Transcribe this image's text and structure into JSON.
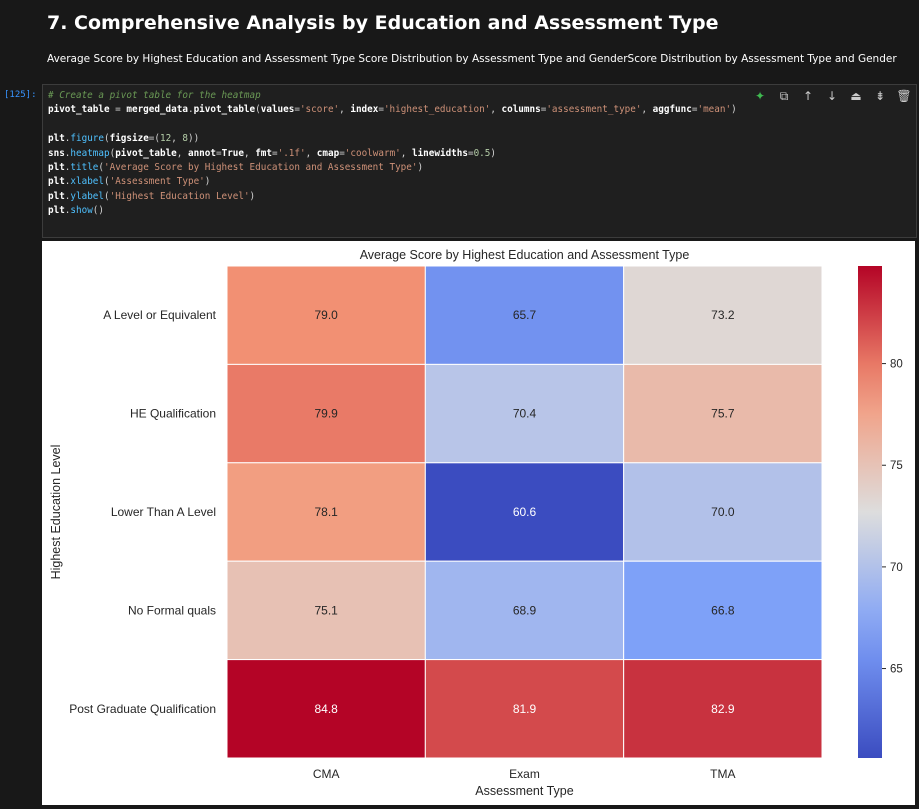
{
  "notebook": {
    "heading": "7. Comprehensive Analysis by Education and Assessment Type",
    "subheading": "Average Score by Highest Education and Assessment Type Score Distribution by Assessment Type and GenderScore Distribution by Assessment Type and Gender",
    "exec_count": "[125]:"
  },
  "code_lines": [
    "# Create a pivot table for the heatmap",
    "pivot_table = merged_data.pivot_table(values='score', index='highest_education', columns='assessment_type', aggfunc='mean')",
    "",
    "plt.figure(figsize=(12, 8))",
    "sns.heatmap(pivot_table, annot=True, fmt='.1f', cmap='coolwarm', linewidths=0.5)",
    "plt.title('Average Score by Highest Education and Assessment Type')",
    "plt.xlabel('Assessment Type')",
    "plt.ylabel('Highest Education Level')",
    "plt.show()"
  ],
  "toolbar": [
    "sparkle-icon",
    "copy-icon",
    "arrow-up-icon",
    "arrow-down-icon",
    "insert-above-icon",
    "insert-below-icon",
    "trash-icon"
  ],
  "chart_data": {
    "type": "heatmap",
    "title": "Average Score by Highest Education and Assessment Type",
    "xlabel": "Assessment Type",
    "ylabel": "Highest Education Level",
    "x_categories": [
      "CMA",
      "Exam",
      "TMA"
    ],
    "y_categories": [
      "A Level or Equivalent",
      "HE Qualification",
      "Lower Than A Level",
      "No Formal quals",
      "Post Graduate Qualification"
    ],
    "values": [
      [
        79.0,
        65.7,
        73.2
      ],
      [
        79.9,
        70.4,
        75.7
      ],
      [
        78.1,
        60.6,
        70.0
      ],
      [
        75.1,
        68.9,
        66.8
      ],
      [
        84.8,
        81.9,
        82.9
      ]
    ],
    "colormap": "coolwarm",
    "color_range": [
      60.6,
      84.8
    ],
    "colorbar_ticks": [
      65,
      70,
      75,
      80
    ]
  }
}
